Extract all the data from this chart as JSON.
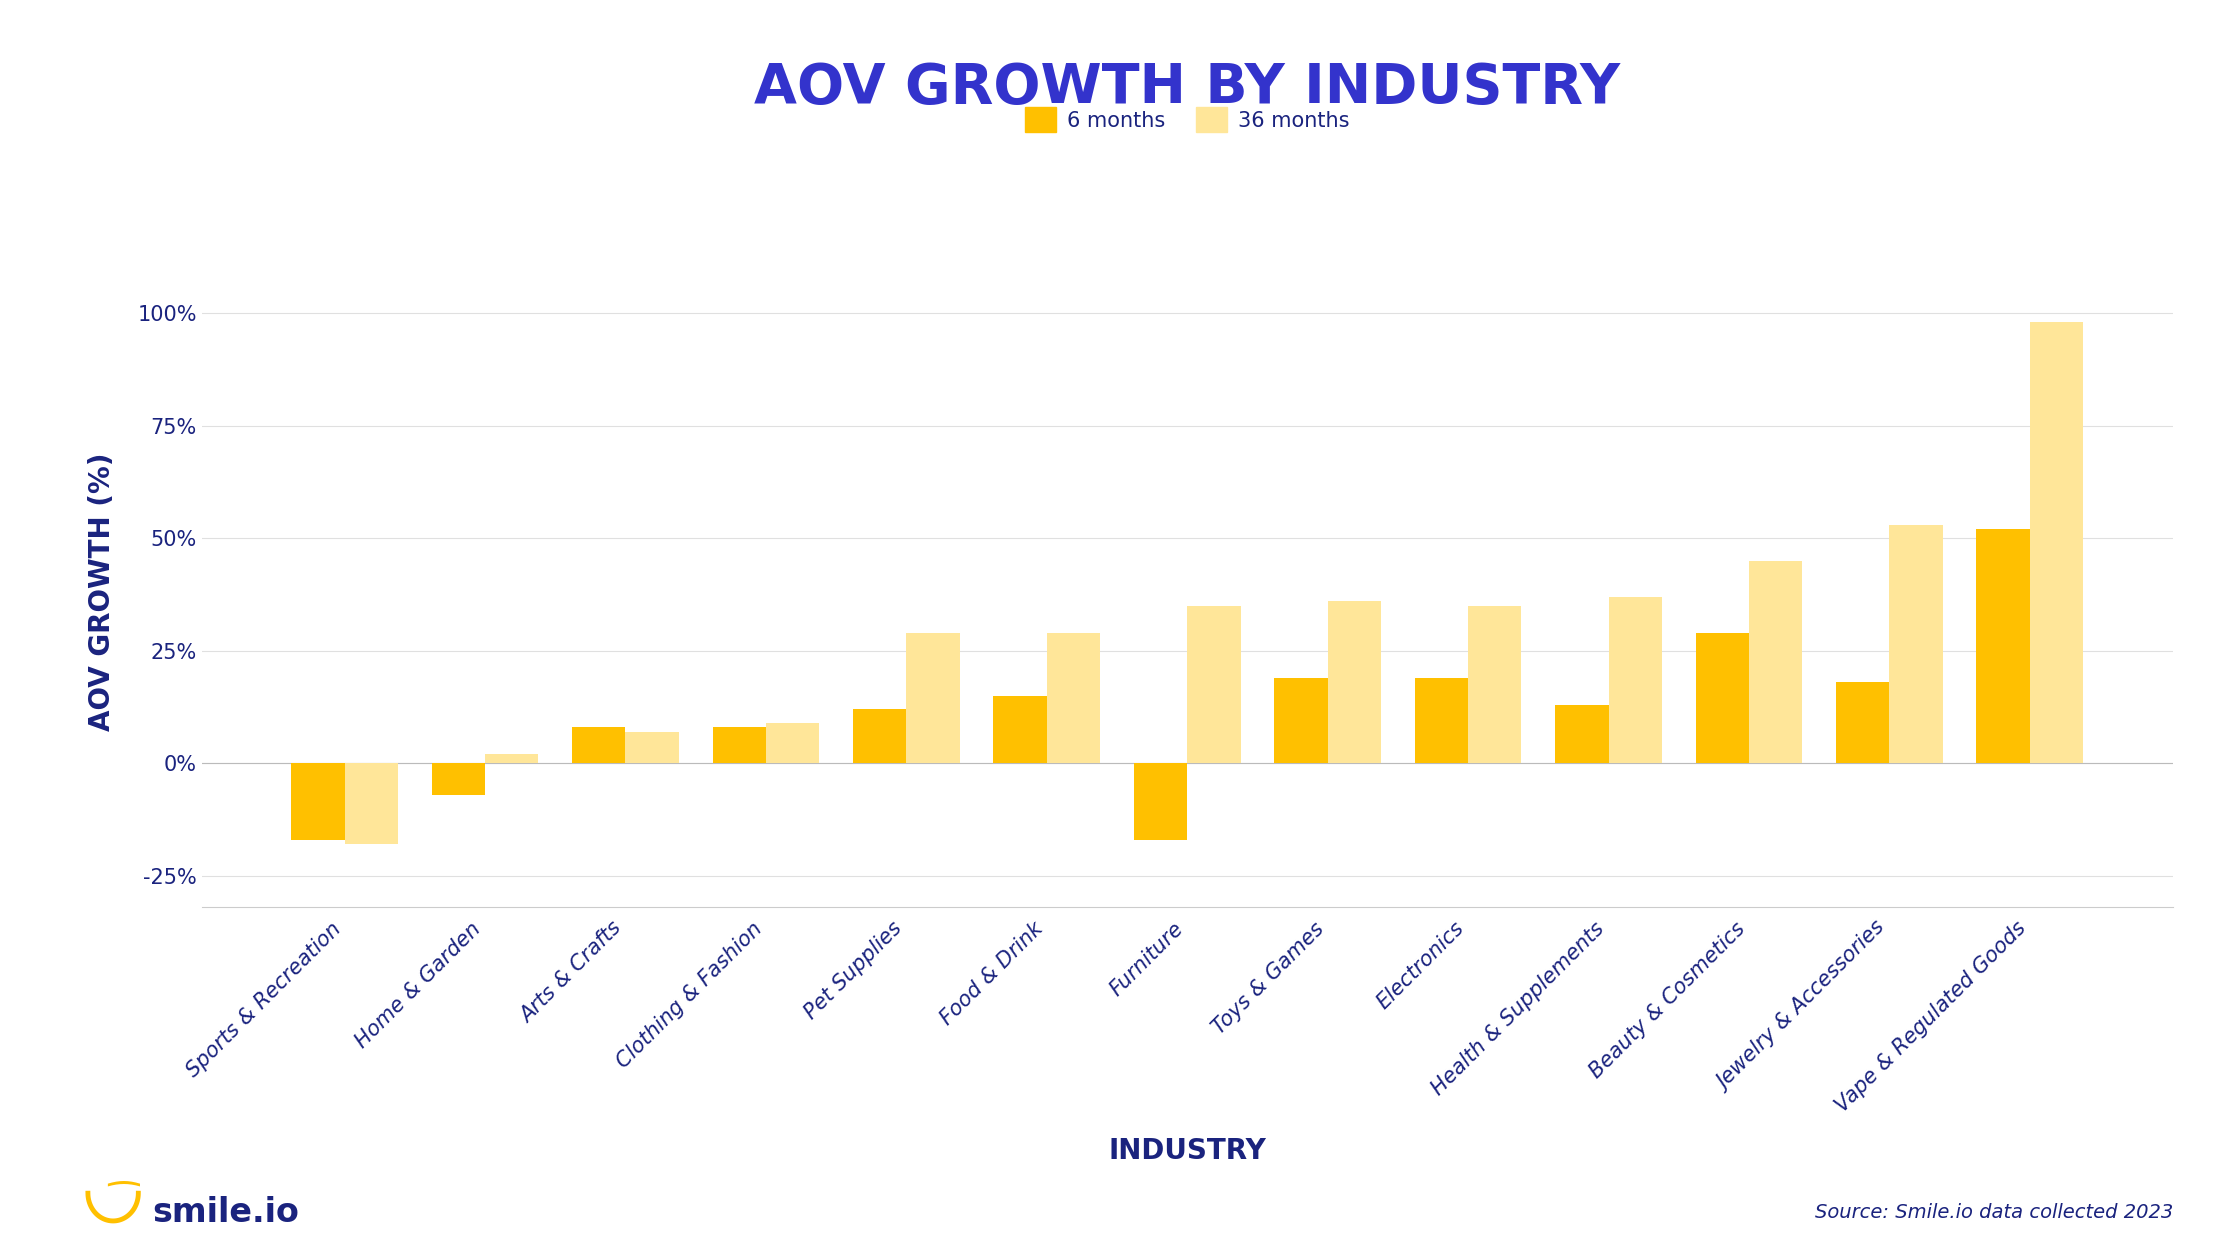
{
  "title": "AOV GROWTH BY INDUSTRY",
  "xlabel": "INDUSTRY",
  "ylabel": "AOV GROWTH (%)",
  "title_color": "#3333cc",
  "label_color": "#1a237e",
  "categories": [
    "Sports & Recreation",
    "Home & Garden",
    "Arts & Crafts",
    "Clothing & Fashion",
    "Pet Supplies",
    "Food & Drink",
    "Furniture",
    "Toys & Games",
    "Electronics",
    "Health & Supplements",
    "Beauty & Cosmetics",
    "Jewelry & Accessories",
    "Vape & Regulated Goods"
  ],
  "values_6months": [
    -17,
    -7,
    8,
    8,
    12,
    15,
    -17,
    19,
    19,
    13,
    29,
    18,
    52
  ],
  "values_36months": [
    -18,
    2,
    7,
    9,
    29,
    29,
    35,
    36,
    35,
    37,
    45,
    53,
    98
  ],
  "color_6months": "#FFC000",
  "color_36months": "#FFE699",
  "ylim": [
    -32,
    108
  ],
  "yticks": [
    -25,
    0,
    25,
    50,
    75,
    100
  ],
  "ytick_labels": [
    "-25%",
    "0%",
    "25%",
    "50%",
    "75%",
    "100%"
  ],
  "bar_width": 0.38,
  "legend_6months": "6 months",
  "legend_36months": "36 months",
  "background_color": "#ffffff",
  "grid_color": "#e0e0e0",
  "smile_text": "smile.io",
  "source_text": "Source: Smile.io data collected 2023",
  "axis_label_fontsize": 20,
  "tick_fontsize": 15,
  "title_fontsize": 40,
  "legend_fontsize": 15
}
